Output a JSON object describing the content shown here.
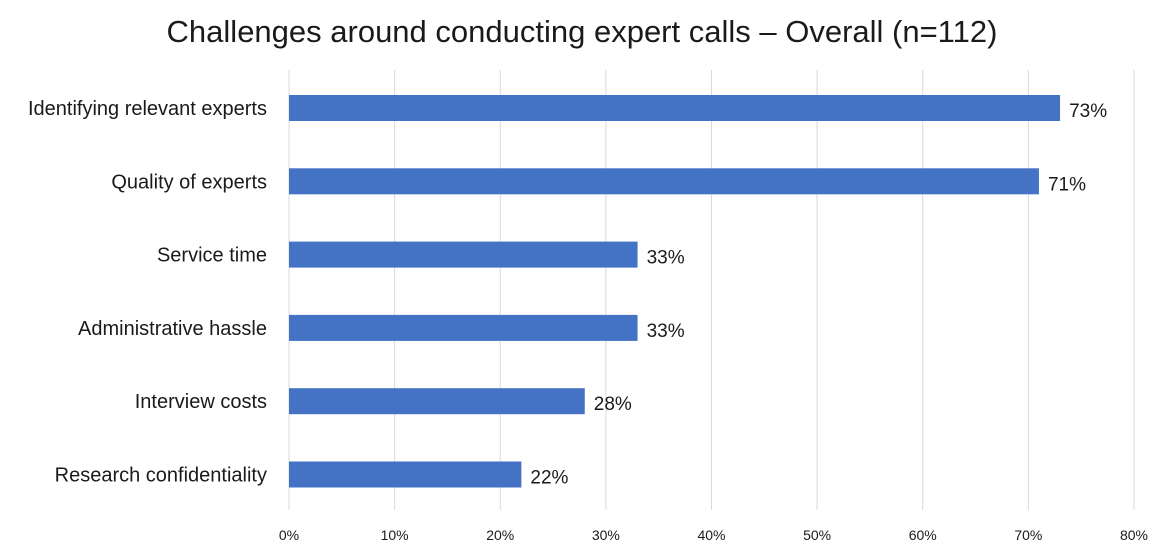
{
  "chart_data": {
    "type": "bar",
    "orientation": "horizontal",
    "title": "Challenges around conducting expert calls – Overall (n=112)",
    "categories": [
      "Identifying relevant experts",
      "Quality of experts",
      "Service time",
      "Administrative hassle",
      "Interview costs",
      "Research confidentiality"
    ],
    "values": [
      73,
      71,
      33,
      33,
      28,
      22
    ],
    "data_labels": [
      "73%",
      "71%",
      "33%",
      "33%",
      "28%",
      "22%"
    ],
    "x_ticks": [
      "0%",
      "10%",
      "20%",
      "30%",
      "40%",
      "50%",
      "60%",
      "70%",
      "80%"
    ],
    "xlim": [
      0,
      80
    ],
    "xlabel": "",
    "ylabel": "",
    "grid": "vertical",
    "legend": "none",
    "bar_color": "#4472c4"
  }
}
